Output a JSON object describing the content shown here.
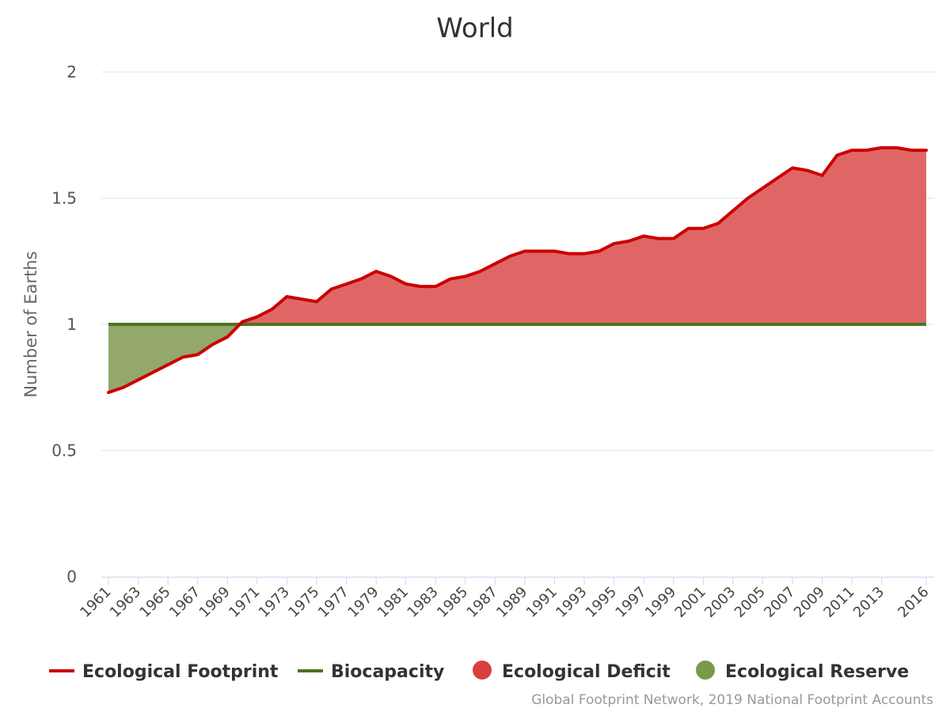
{
  "chart_data": {
    "type": "area",
    "title": "World",
    "xlabel": "",
    "ylabel": "Number of Earths",
    "ylim": [
      0,
      2
    ],
    "yticks": [
      "0",
      "0.5",
      "1",
      "1.5",
      "2"
    ],
    "xtick_labels": [
      "1961",
      "1963",
      "1965",
      "1967",
      "1969",
      "1971",
      "1973",
      "1975",
      "1977",
      "1979",
      "1981",
      "1983",
      "1985",
      "1987",
      "1989",
      "1991",
      "1993",
      "1995",
      "1997",
      "1999",
      "2001",
      "2003",
      "2005",
      "2007",
      "2009",
      "2011",
      "2013",
      "2016"
    ],
    "x": [
      1961,
      1962,
      1963,
      1964,
      1965,
      1966,
      1967,
      1968,
      1969,
      1970,
      1971,
      1972,
      1973,
      1974,
      1975,
      1976,
      1977,
      1978,
      1979,
      1980,
      1981,
      1982,
      1983,
      1984,
      1985,
      1986,
      1987,
      1988,
      1989,
      1990,
      1991,
      1992,
      1993,
      1994,
      1995,
      1996,
      1997,
      1998,
      1999,
      2000,
      2001,
      2002,
      2003,
      2004,
      2005,
      2006,
      2007,
      2008,
      2009,
      2010,
      2011,
      2012,
      2013,
      2014,
      2015,
      2016
    ],
    "series": [
      {
        "name": "Ecological Footprint",
        "color": "#cc0000",
        "values": [
          0.73,
          0.75,
          0.78,
          0.81,
          0.84,
          0.87,
          0.88,
          0.92,
          0.95,
          1.01,
          1.03,
          1.06,
          1.11,
          1.1,
          1.09,
          1.14,
          1.16,
          1.18,
          1.21,
          1.19,
          1.16,
          1.15,
          1.15,
          1.18,
          1.19,
          1.21,
          1.24,
          1.27,
          1.29,
          1.29,
          1.29,
          1.28,
          1.28,
          1.29,
          1.32,
          1.33,
          1.35,
          1.34,
          1.34,
          1.38,
          1.38,
          1.4,
          1.45,
          1.5,
          1.54,
          1.58,
          1.62,
          1.61,
          1.59,
          1.67,
          1.69,
          1.69,
          1.7,
          1.7,
          1.69,
          1.69
        ]
      },
      {
        "name": "Biocapacity",
        "color": "#4d7320",
        "values": [
          1,
          1,
          1,
          1,
          1,
          1,
          1,
          1,
          1,
          1,
          1,
          1,
          1,
          1,
          1,
          1,
          1,
          1,
          1,
          1,
          1,
          1,
          1,
          1,
          1,
          1,
          1,
          1,
          1,
          1,
          1,
          1,
          1,
          1,
          1,
          1,
          1,
          1,
          1,
          1,
          1,
          1,
          1,
          1,
          1,
          1,
          1,
          1,
          1,
          1,
          1,
          1,
          1,
          1,
          1,
          1
        ]
      }
    ],
    "areas": [
      {
        "name": "Ecological Deficit",
        "color": "#e06666"
      },
      {
        "name": "Ecological Reserve",
        "color": "#93a86a"
      }
    ],
    "grid": true,
    "legend_position": "bottom"
  },
  "legend": {
    "footprint": "Ecological Footprint",
    "biocapacity": "Biocapacity",
    "deficit": "Ecological Deficit",
    "reserve": "Ecological Reserve"
  },
  "legend_colors": {
    "footprint": "#cc0000",
    "biocapacity": "#4d7320",
    "deficit": "#d93f3f",
    "reserve": "#7a9a4a"
  },
  "credit": "Global Footprint Network, 2019 National Footprint Accounts"
}
